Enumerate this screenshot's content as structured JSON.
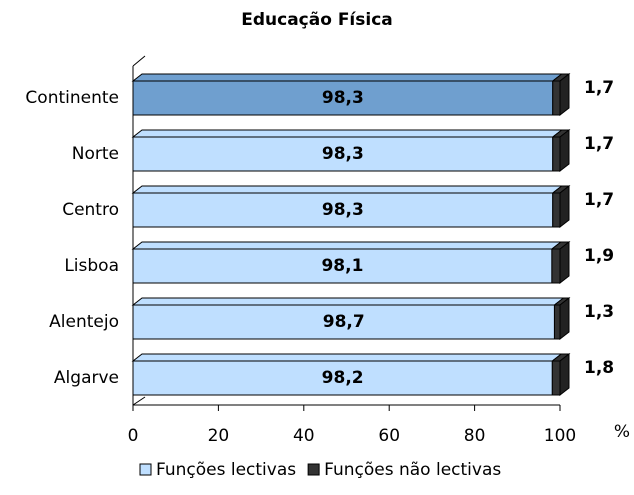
{
  "chart_data": {
    "type": "stacked-bar-horizontal",
    "title": "Educação Física",
    "categories": [
      "Continente",
      "Norte",
      "Centro",
      "Lisboa",
      "Alentejo",
      "Algarve"
    ],
    "series": [
      {
        "name": "Funções lectivas",
        "color": "#bfdfff",
        "colors": [
          "#6f9fcf",
          "#bfdfff",
          "#bfdfff",
          "#bfdfff",
          "#bfdfff",
          "#bfdfff"
        ],
        "values": [
          98.3,
          98.3,
          98.3,
          98.1,
          98.7,
          98.2
        ],
        "value_labels": [
          "98,3",
          "98,3",
          "98,3",
          "98,1",
          "98,7",
          "98,2"
        ]
      },
      {
        "name": "Funções não lectivas",
        "color": "#333333",
        "values": [
          1.7,
          1.7,
          1.7,
          1.9,
          1.3,
          1.8
        ],
        "value_labels": [
          "1,7",
          "1,7",
          "1,7",
          "1,9",
          "1,3",
          "1,8"
        ]
      }
    ],
    "xlim": [
      0,
      100
    ],
    "xticks": [
      0,
      20,
      40,
      60,
      80,
      100
    ],
    "xlabel": "%"
  }
}
